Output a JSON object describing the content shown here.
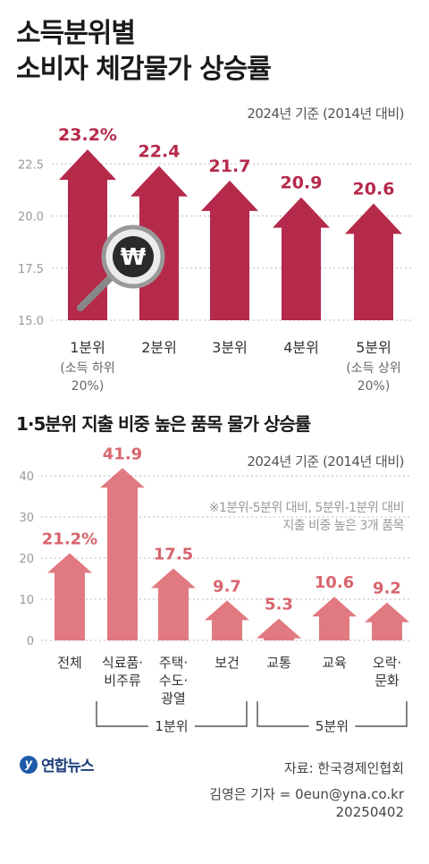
{
  "header": {
    "title_line1": "소득분위별",
    "title_line2": "소비자 체감물가 상승률"
  },
  "chart_data": [
    {
      "type": "bar",
      "title": "소득분위별 소비자 체감물가 상승률",
      "note": "2024년 기준 (2014년 대비)",
      "categories": [
        "1분위",
        "2분위",
        "3분위",
        "4분위",
        "5분위"
      ],
      "category_sublabels": [
        "(소득 하위\n20%)",
        "",
        "",
        "",
        "(소득 상위\n20%)"
      ],
      "values": [
        23.2,
        22.4,
        21.7,
        20.9,
        20.6
      ],
      "value_labels": [
        "23.2%",
        "22.4",
        "21.7",
        "20.9",
        "20.6"
      ],
      "ylim": [
        15.0,
        23.5
      ],
      "yticks": [
        15.0,
        17.5,
        20.0,
        22.5
      ],
      "ytick_labels": [
        "15.0",
        "17.5",
        "20.0",
        "22.5"
      ],
      "grid": true,
      "color": "#b5294a",
      "icon": "won-magnifier-icon"
    },
    {
      "type": "bar",
      "title": "1·5분위 지출 비중 높은 품목 물가 상승률",
      "note": "2024년 기준 (2014년 대비)",
      "note2_line1": "※1분위-5분위 대비, 5분위-1분위 대비",
      "note2_line2": "지출 비중 높은 3개 품목",
      "categories": [
        "전체",
        "식료품·\n비주류",
        "주택·\n수도·\n광열",
        "보건",
        "교통",
        "교육",
        "오락·\n문화"
      ],
      "values": [
        21.2,
        41.9,
        17.5,
        9.7,
        5.3,
        10.6,
        9.2
      ],
      "value_labels": [
        "21.2%",
        "41.9",
        "17.5",
        "9.7",
        "5.3",
        "10.6",
        "9.2"
      ],
      "groups": [
        {
          "label": "1분위",
          "members": [
            "식료품·\n비주류",
            "주택·\n수도·\n광열",
            "보건"
          ]
        },
        {
          "label": "5분위",
          "members": [
            "교통",
            "교육",
            "오락·\n문화"
          ]
        }
      ],
      "ylim": [
        0,
        45
      ],
      "yticks": [
        0,
        10,
        20,
        30,
        40
      ],
      "ytick_labels": [
        "0",
        "10",
        "20",
        "30",
        "40"
      ],
      "grid": true,
      "color": "#e07a80"
    }
  ],
  "footer": {
    "logo_text": "연합뉴스",
    "source": "자료: 한국경제인협회",
    "author": "김영은 기자 = 0eun@yna.co.kr",
    "date": "20250402"
  },
  "colors": {
    "chart1_value_label": "#b5294a",
    "chart2_value_label": "#d9646e",
    "axis_text": "#999999",
    "grid": "#bbbbbb"
  }
}
